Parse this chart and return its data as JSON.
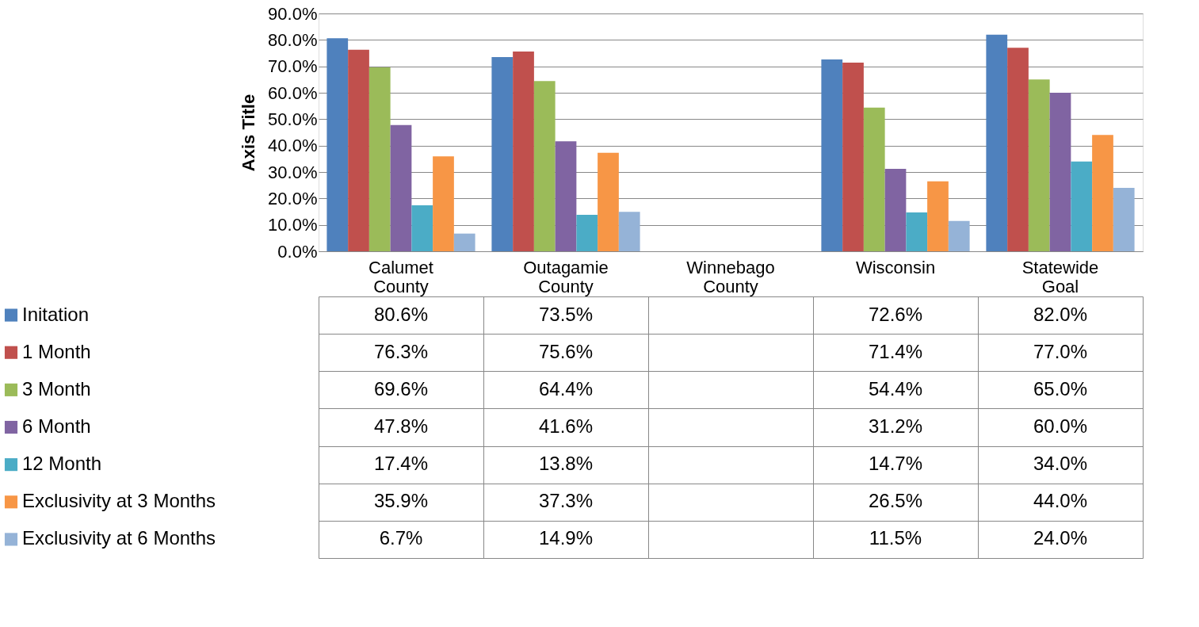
{
  "chart_data": {
    "type": "bar",
    "ylabel": "Axis Title",
    "categories": [
      "Calumet County",
      "Outagamie County",
      "Winnebago County",
      "Wisconsin",
      "Statewide Goal"
    ],
    "series": [
      {
        "name": "Initation",
        "color": "#4f81bd",
        "values": [
          80.6,
          73.5,
          null,
          72.6,
          82.0
        ],
        "value_labels": [
          "80.6%",
          "73.5%",
          null,
          "72.6%",
          "82.0%"
        ]
      },
      {
        "name": "1 Month",
        "color": "#c0504d",
        "values": [
          76.3,
          75.6,
          null,
          71.4,
          77.0
        ],
        "value_labels": [
          "76.3%",
          "75.6%",
          null,
          "71.4%",
          "77.0%"
        ]
      },
      {
        "name": "3 Month",
        "color": "#9bbb59",
        "values": [
          69.6,
          64.4,
          null,
          54.4,
          65.0
        ],
        "value_labels": [
          "69.6%",
          "64.4%",
          null,
          "54.4%",
          "65.0%"
        ]
      },
      {
        "name": "6 Month",
        "color": "#8064a2",
        "values": [
          47.8,
          41.6,
          null,
          31.2,
          60.0
        ],
        "value_labels": [
          "47.8%",
          "41.6%",
          null,
          "31.2%",
          "60.0%"
        ]
      },
      {
        "name": "12 Month",
        "color": "#4bacc6",
        "values": [
          17.4,
          13.8,
          null,
          14.7,
          34.0
        ],
        "value_labels": [
          "17.4%",
          "13.8%",
          null,
          "14.7%",
          "34.0%"
        ]
      },
      {
        "name": "Exclusivity at 3 Months",
        "color": "#f79646",
        "values": [
          35.9,
          37.3,
          null,
          26.5,
          44.0
        ],
        "value_labels": [
          "35.9%",
          "37.3%",
          null,
          "26.5%",
          "44.0%"
        ]
      },
      {
        "name": "Exclusivity at 6 Months",
        "color": "#95b3d7",
        "values": [
          6.7,
          14.9,
          null,
          11.5,
          24.0
        ],
        "value_labels": [
          "6.7%",
          "14.9%",
          null,
          "11.5%",
          "24.0%"
        ]
      }
    ],
    "ylim": [
      0,
      90
    ],
    "yticks": [
      {
        "value": 0,
        "label": "0.0%"
      },
      {
        "value": 10,
        "label": "10.0%"
      },
      {
        "value": 20,
        "label": "20.0%"
      },
      {
        "value": 30,
        "label": "30.0%"
      },
      {
        "value": 40,
        "label": "40.0%"
      },
      {
        "value": 50,
        "label": "50.0%"
      },
      {
        "value": 60,
        "label": "60.0%"
      },
      {
        "value": 70,
        "label": "70.0%"
      },
      {
        "value": 80,
        "label": "80.0%"
      },
      {
        "value": 90,
        "label": "90.0%"
      }
    ],
    "grid": "y",
    "legend": "bottom"
  }
}
